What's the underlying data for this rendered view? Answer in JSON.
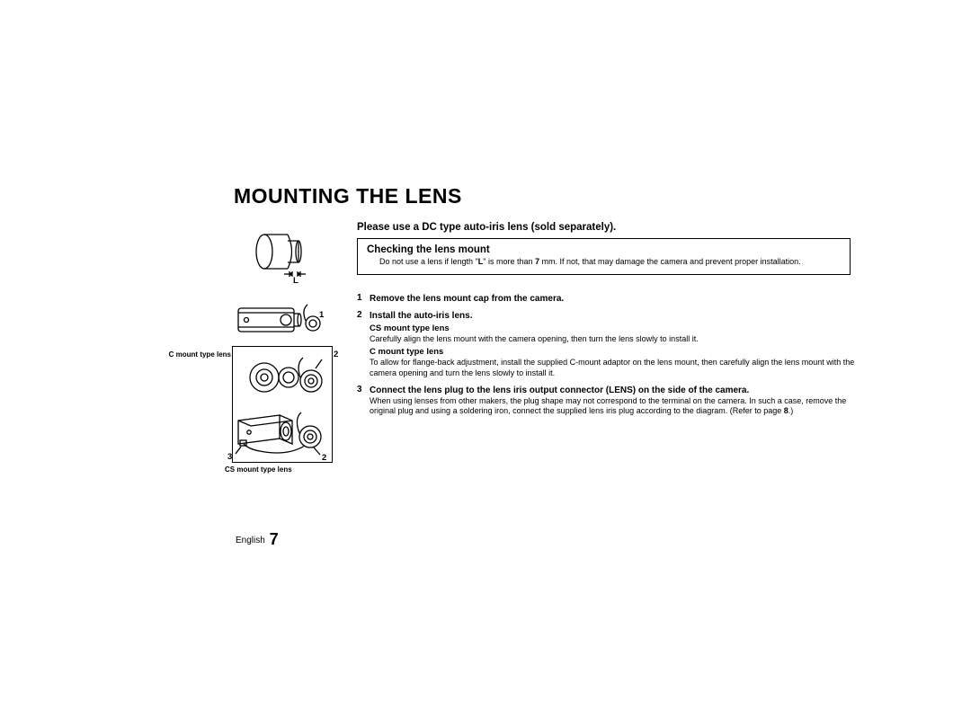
{
  "title": "MOUNTING THE LENS",
  "subtitle": "Please use a DC type auto-iris lens (sold separately).",
  "box": {
    "heading": "Checking the lens mount",
    "body_pre": "Do not use a lens if length \"",
    "body_L": "L",
    "body_mid": "\" is more than ",
    "body_7": "7",
    "body_post": " mm. If not, that may damage the camera and prevent proper installation."
  },
  "steps": [
    {
      "num": "1",
      "lines": [
        {
          "cls": "b",
          "text": "Remove the lens mount cap from the camera."
        }
      ]
    },
    {
      "num": "2",
      "lines": [
        {
          "cls": "b",
          "text": "Install the auto-iris lens."
        },
        {
          "cls": "sub-b",
          "text": "CS mount type lens"
        },
        {
          "cls": "plain",
          "text": "Carefully align the lens mount with the camera opening, then turn the lens slowly to install it."
        },
        {
          "cls": "sub-b",
          "text": "C mount type lens"
        },
        {
          "cls": "plain",
          "text": "To allow for flange-back adjustment, install the supplied C-mount adaptor on the lens mount, then carefully align the lens mount with the camera opening and turn the lens slowly to install it."
        }
      ]
    },
    {
      "num": "3",
      "lines": [
        {
          "cls": "b",
          "text": "Connect the lens plug to the lens iris output connector (LENS) on the side of the camera."
        },
        {
          "cls": "plain",
          "text": "When using lenses from other makers, the plug shape may not correspond to the terminal on the camera. In such a case, remove the original plug and using a soldering iron, connect the supplied lens iris plug according to the diagram. (Refer to page "
        },
        {
          "cls": "inline-b",
          "text": "8"
        },
        {
          "cls": "inline",
          "text": ".)"
        }
      ]
    }
  ],
  "figure": {
    "L_label": "L",
    "num1": "1",
    "num2_upper": "2",
    "num2_lower": "2",
    "num3": "3",
    "c_label": "C mount type lens",
    "cs_label": "CS mount type lens"
  },
  "footer": {
    "lang": "English",
    "page": "7"
  }
}
